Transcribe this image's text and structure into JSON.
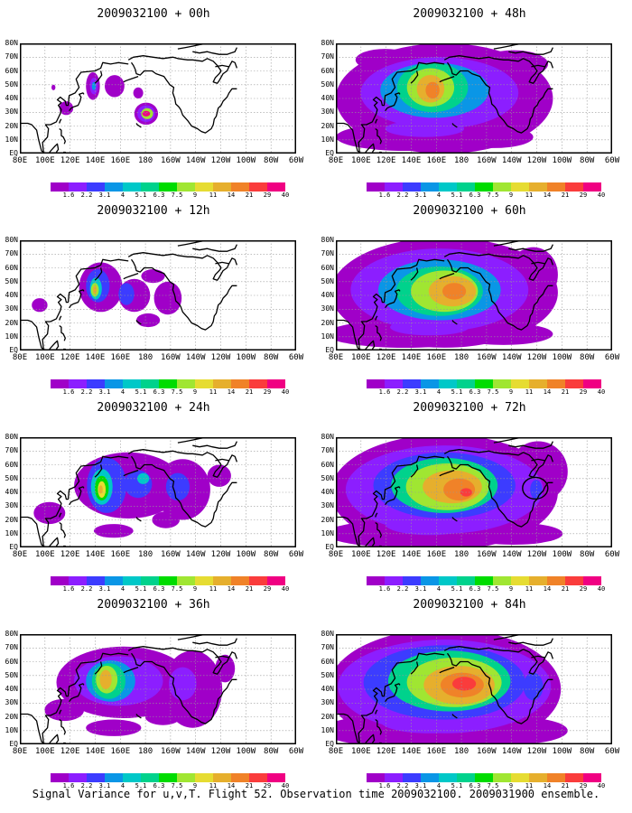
{
  "panels": [
    {
      "title": "2009032100 + 00h",
      "hour": 0
    },
    {
      "title": "2009032100 + 48h",
      "hour": 48
    },
    {
      "title": "2009032100 + 12h",
      "hour": 12
    },
    {
      "title": "2009032100 + 60h",
      "hour": 60
    },
    {
      "title": "2009032100 + 24h",
      "hour": 24
    },
    {
      "title": "2009032100 + 72h",
      "hour": 72
    },
    {
      "title": "2009032100 + 36h",
      "hour": 36
    },
    {
      "title": "2009032100 + 84h",
      "hour": 84
    }
  ],
  "x_ticks": [
    "80E",
    "100E",
    "120E",
    "140E",
    "160E",
    "180",
    "160W",
    "140W",
    "120W",
    "100W",
    "80W",
    "60W"
  ],
  "y_ticks": [
    "80N",
    "70N",
    "60N",
    "50N",
    "40N",
    "30N",
    "20N",
    "10N",
    "EQ"
  ],
  "colorbar": {
    "labels": [
      "1.6",
      "2.2",
      "3.1",
      "4",
      "5.1",
      "6.3",
      "7.5",
      "9",
      "11",
      "14",
      "21",
      "29",
      "40"
    ],
    "colors": [
      "#a000c8",
      "#8c1eff",
      "#3c3cff",
      "#0a96e6",
      "#00c8c8",
      "#00d28c",
      "#00dc00",
      "#a0e632",
      "#e6dc32",
      "#e6af2d",
      "#f08228",
      "#fa3c3c",
      "#f00082"
    ]
  },
  "footer": "Signal Variance for u,v,T. Flight 52. Observation time 2009032100. 2009031900 ensemble."
}
